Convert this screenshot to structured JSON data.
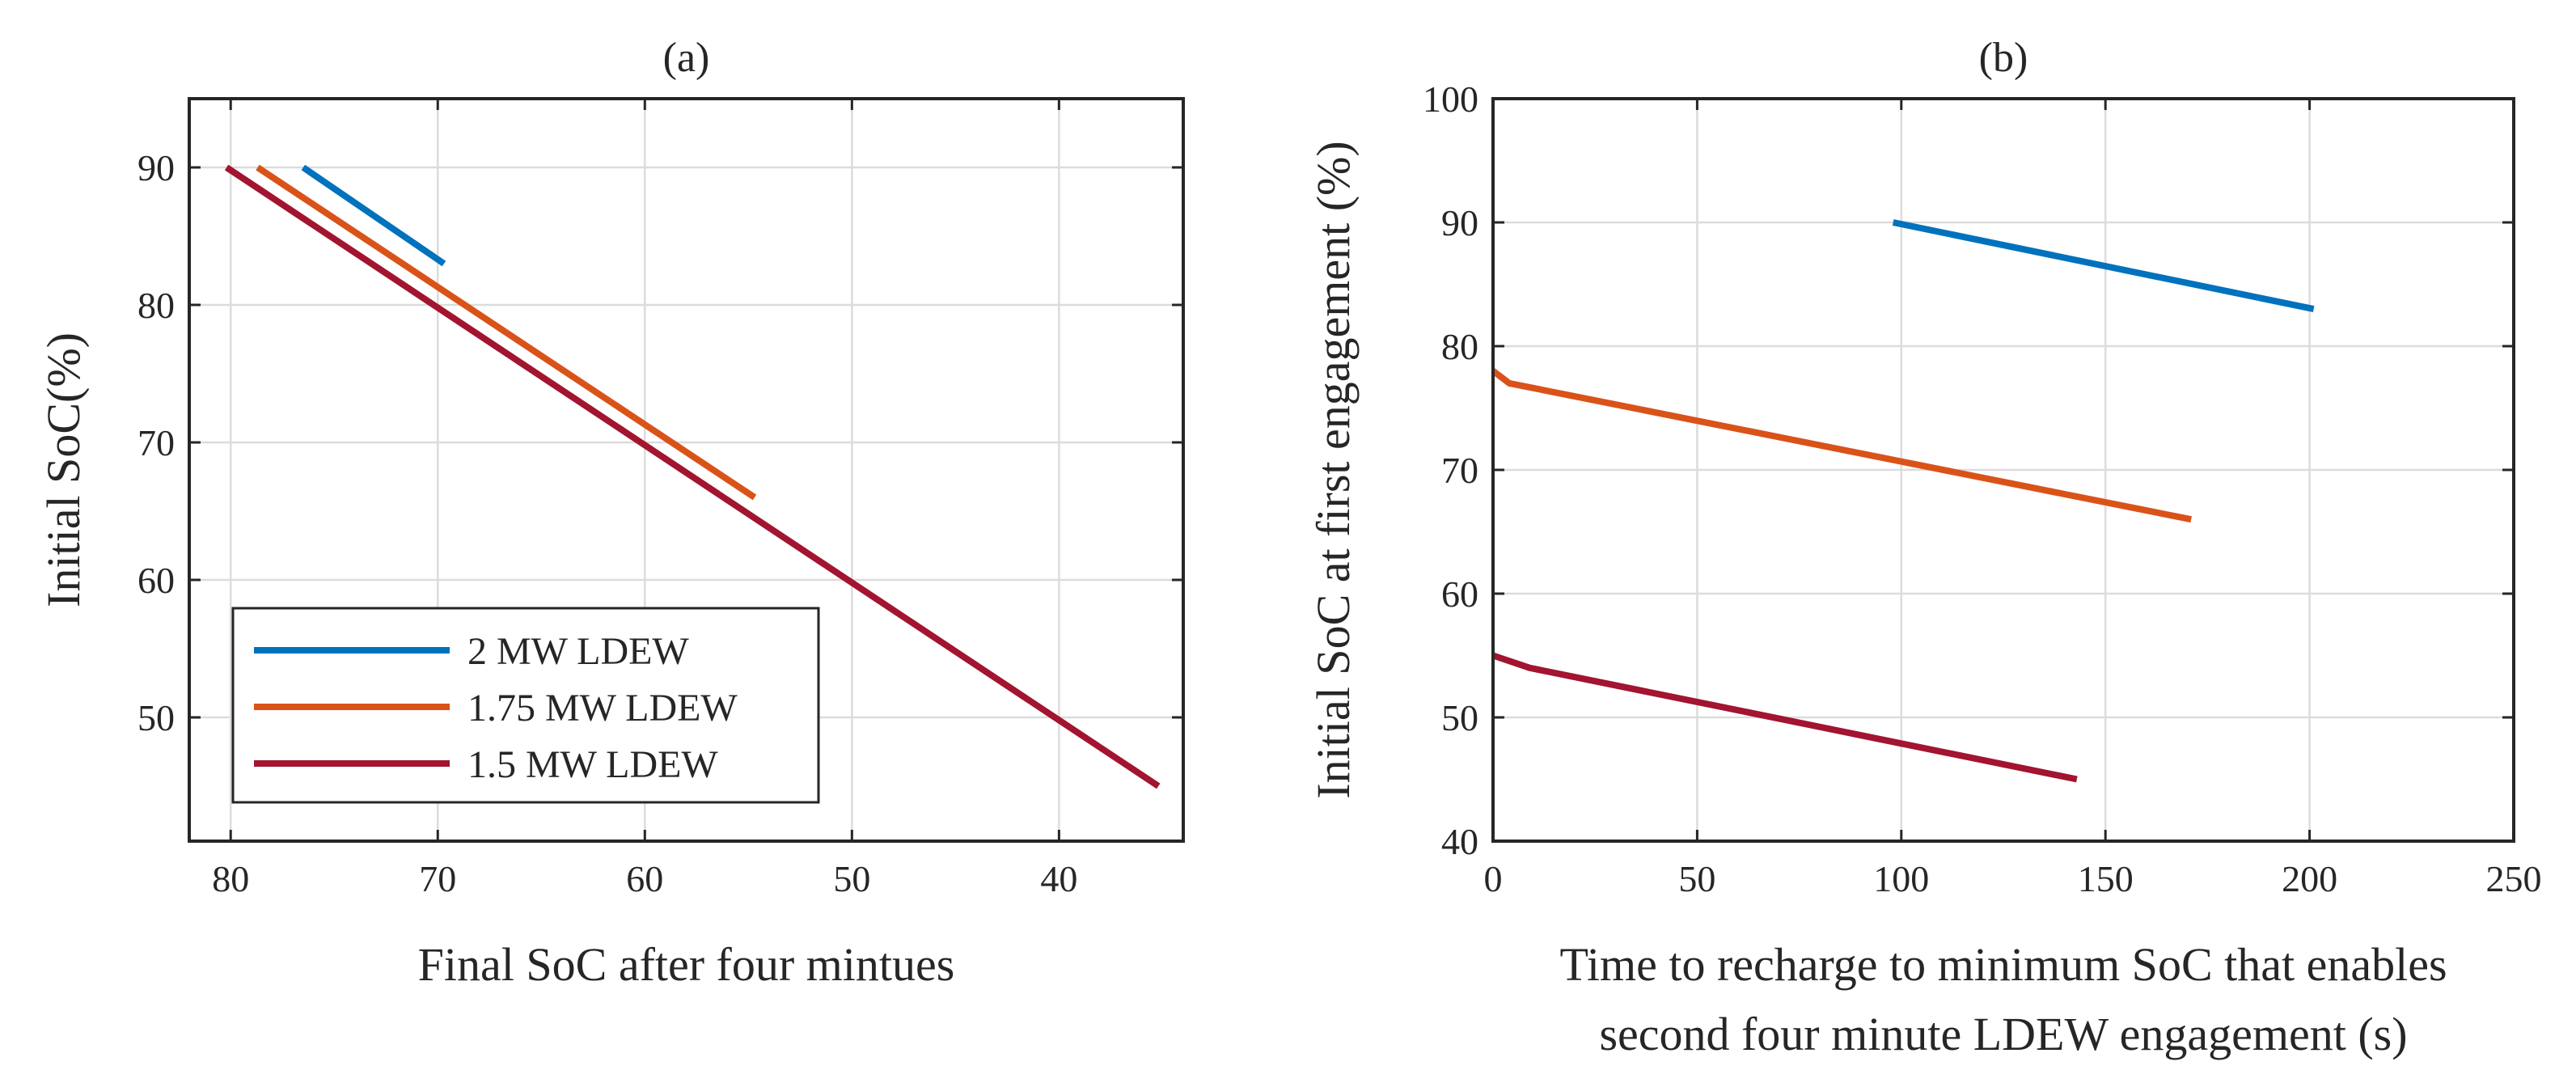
{
  "figure": {
    "panels": [
      "panel_a",
      "panel_b"
    ]
  },
  "chart_data": [
    {
      "id": "panel_a",
      "type": "line",
      "title": "(a)",
      "xlabel": "Final SoC after four mintues",
      "ylabel": "Initial SoC(%)",
      "xlim": [
        82,
        34
      ],
      "ylim": [
        41,
        95
      ],
      "x_reversed": true,
      "xticks": [
        80,
        70,
        60,
        50,
        40
      ],
      "yticks": [
        50,
        60,
        70,
        80,
        90
      ],
      "grid": true,
      "legend": {
        "position": "bottom-left",
        "entries": [
          "2 MW LDEW",
          "1.75 MW LDEW",
          "1.5 MW LDEW"
        ]
      },
      "series": [
        {
          "name": "2 MW LDEW",
          "color": "#0072BD",
          "x": [
            76.5,
            69.7
          ],
          "y": [
            90,
            83
          ]
        },
        {
          "name": "1.75 MW LDEW",
          "color": "#D95319",
          "x": [
            78.7,
            54.7
          ],
          "y": [
            90,
            66
          ]
        },
        {
          "name": "1.5 MW LDEW",
          "color": "#A2142F",
          "x": [
            80.2,
            35.2
          ],
          "y": [
            90,
            45
          ]
        }
      ]
    },
    {
      "id": "panel_b",
      "type": "line",
      "title": "(b)",
      "xlabel": [
        "Time to recharge to minimum SoC that enables",
        "second four minute LDEW engagement (s)"
      ],
      "ylabel": "Initial SoC at first engagement (%)",
      "xlim": [
        0,
        250
      ],
      "ylim": [
        40,
        100
      ],
      "xticks": [
        0,
        50,
        100,
        150,
        200,
        250
      ],
      "yticks": [
        40,
        50,
        60,
        70,
        80,
        90,
        100
      ],
      "grid": true,
      "series": [
        {
          "name": "2 MW LDEW",
          "color": "#0072BD",
          "x": [
            98,
            201
          ],
          "y": [
            90,
            83
          ]
        },
        {
          "name": "1.75 MW LDEW",
          "color": "#D95319",
          "x": [
            0,
            4,
            171
          ],
          "y": [
            78,
            77,
            66
          ]
        },
        {
          "name": "1.5 MW LDEW",
          "color": "#A2142F",
          "x": [
            0,
            9,
            143
          ],
          "y": [
            55,
            54,
            45
          ]
        }
      ]
    }
  ]
}
